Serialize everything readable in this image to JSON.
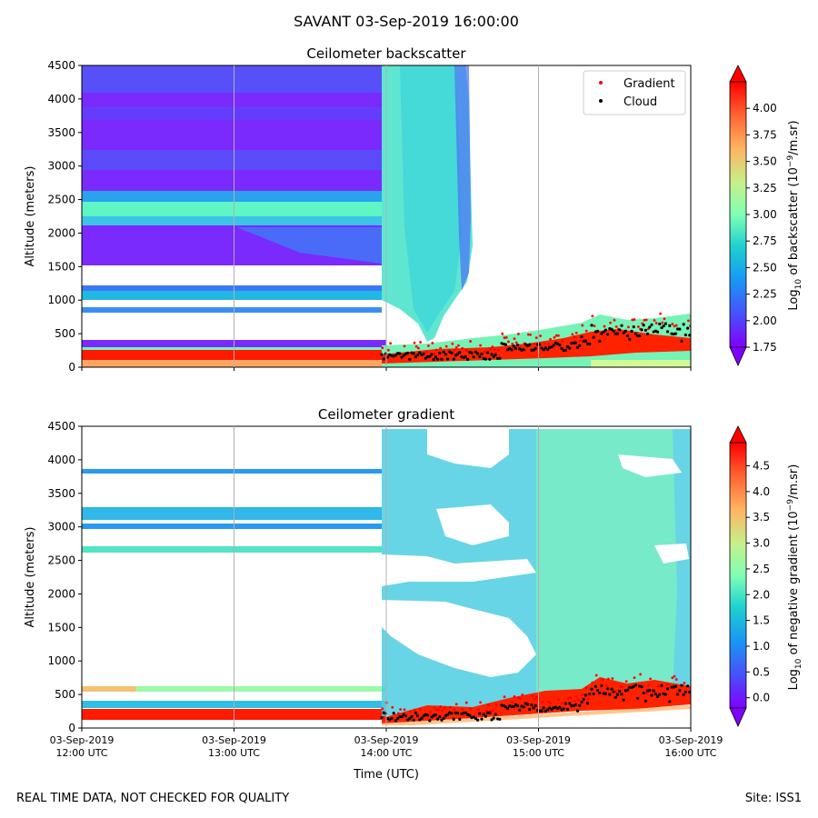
{
  "suptitle": "SAVANT 03-Sep-2019 16:00:00",
  "footer_left": "REAL TIME DATA, NOT CHECKED FOR QUALITY",
  "footer_right": "Site: ISS1",
  "chart_data": [
    {
      "type": "heatmap",
      "title": "Ceilometer backscatter",
      "ylabel": "Altitude (meters)",
      "xlabel": "",
      "ylim": [
        0,
        4500
      ],
      "yticks": [
        "0",
        "500",
        "1000",
        "1500",
        "2000",
        "2500",
        "3000",
        "3500",
        "4000",
        "4500"
      ],
      "ytick_values": [
        0,
        500,
        1000,
        1500,
        2000,
        2500,
        3000,
        3500,
        4000,
        4500
      ],
      "xlim_hours": [
        12,
        16
      ],
      "xtick_hours": [
        12,
        13,
        14,
        15,
        16
      ],
      "xticks": [
        "03-Sep-2019\n12:00 UTC",
        "03-Sep-2019\n13:00 UTC",
        "03-Sep-2019\n14:00 UTC",
        "03-Sep-2019\n15:00 UTC",
        "03-Sep-2019\n16:00 UTC"
      ],
      "show_xticklabels": false,
      "grid": "x",
      "colorbar": {
        "label_prefix": "Log",
        "label_sub": "10",
        "label_mid": " of backscatter (10",
        "label_sup": "−9",
        "label_suffix": "/m.sr)",
        "min": 1.75,
        "max": 4.25,
        "ticks": [
          "1.75",
          "2.00",
          "2.25",
          "2.50",
          "2.75",
          "3.00",
          "3.25",
          "3.50",
          "3.75",
          "4.00"
        ],
        "tick_values": [
          1.75,
          2.0,
          2.25,
          2.5,
          2.75,
          3.0,
          3.25,
          3.5,
          3.75,
          4.0
        ],
        "extend": "both"
      },
      "legend": {
        "placement": "top-right",
        "entries": [
          {
            "label": "Gradient",
            "color": "#ff0000"
          },
          {
            "label": "Cloud",
            "color": "#000000"
          }
        ]
      }
    },
    {
      "type": "heatmap",
      "title": "Ceilometer gradient",
      "ylabel": "Altitude (meters)",
      "xlabel": "Time (UTC)",
      "ylim": [
        0,
        4500
      ],
      "yticks": [
        "0",
        "500",
        "1000",
        "1500",
        "2000",
        "2500",
        "3000",
        "3500",
        "4000",
        "4500"
      ],
      "ytick_values": [
        0,
        500,
        1000,
        1500,
        2000,
        2500,
        3000,
        3500,
        4000,
        4500
      ],
      "xlim_hours": [
        12,
        16
      ],
      "xtick_hours": [
        12,
        13,
        14,
        15,
        16
      ],
      "xticks": [
        "03-Sep-2019\n12:00 UTC",
        "03-Sep-2019\n13:00 UTC",
        "03-Sep-2019\n14:00 UTC",
        "03-Sep-2019\n15:00 UTC",
        "03-Sep-2019\n16:00 UTC"
      ],
      "show_xticklabels": true,
      "grid": "x",
      "colorbar": {
        "label_prefix": "Log",
        "label_sub": "10",
        "label_mid": " of negative gradient (10",
        "label_sup": "−9",
        "label_suffix": "/m.sr)",
        "min": -0.2,
        "max": 4.95,
        "ticks": [
          "0.0",
          "0.5",
          "1.0",
          "1.5",
          "2.0",
          "2.5",
          "3.0",
          "3.5",
          "4.0",
          "4.5"
        ],
        "tick_values": [
          0.0,
          0.5,
          1.0,
          1.5,
          2.0,
          2.5,
          3.0,
          3.5,
          4.0,
          4.5
        ],
        "extend": "both"
      }
    }
  ]
}
